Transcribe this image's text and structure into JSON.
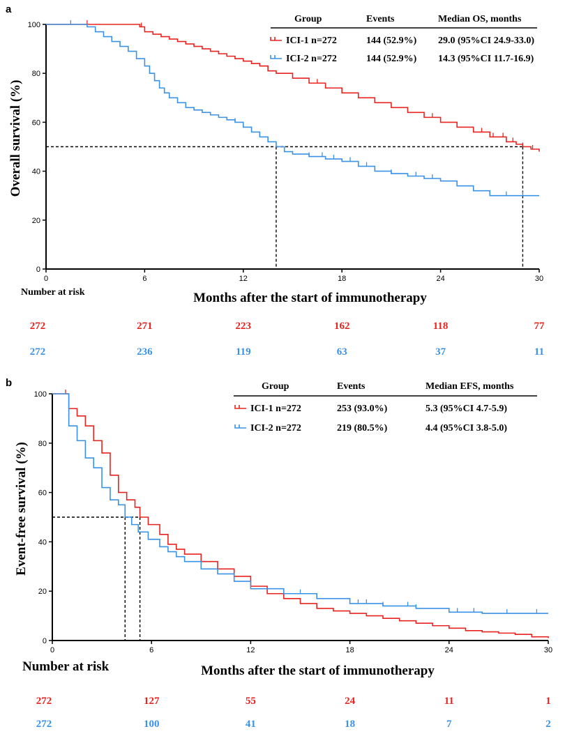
{
  "chart_data": [
    {
      "panel_label": "a",
      "type": "line",
      "xlabel": "Months after the start of immunotherapy",
      "ylabel": "Overall survival (%)",
      "xlim": [
        0,
        30
      ],
      "ylim": [
        0,
        100
      ],
      "xticks": [
        "0",
        "6",
        "12",
        "18",
        "24",
        "30"
      ],
      "yticks": [
        "0",
        "20",
        "40",
        "60",
        "80",
        "100"
      ],
      "grid": false,
      "legend_placement": "top-right",
      "legend_headers": [
        "Group",
        "Events",
        "Median OS, months"
      ],
      "series": [
        {
          "name": "ICI-1 n=272",
          "events": "144 (52.9%)",
          "median": "29.0 (95%CI 24.9-33.0)",
          "color": "#e8231f",
          "median_x": 29.0,
          "x": [
            0,
            5.7,
            6.0,
            6.5,
            7.0,
            7.5,
            8.0,
            8.5,
            9.0,
            9.5,
            10.0,
            10.5,
            11.0,
            11.5,
            12.0,
            12.5,
            13.0,
            13.5,
            14.0,
            15.0,
            16.0,
            17.0,
            18.0,
            19.0,
            20.0,
            21.0,
            22.0,
            23.0,
            24.0,
            25.0,
            26.0,
            27.0,
            28.0,
            28.6,
            29.0,
            29.5,
            30.0
          ],
          "y": [
            100,
            99,
            97,
            96,
            95,
            94,
            93,
            92,
            91,
            90,
            89,
            88,
            87,
            86,
            85,
            84,
            83,
            81,
            80,
            78,
            76,
            74,
            72,
            70,
            68,
            66,
            64,
            62,
            60,
            58,
            56,
            54,
            52,
            51,
            50,
            49,
            48
          ],
          "censor_x": [
            2.5,
            5.8,
            16.5,
            20.0,
            23.5,
            26.5,
            27.2,
            27.8,
            28.4,
            29.0,
            29.6
          ],
          "at_risk": [
            "272",
            "271",
            "223",
            "162",
            "118",
            "77"
          ]
        },
        {
          "name": "ICI-2 n=272",
          "events": "144 (52.9%)",
          "median": "14.3 (95%CI 11.7-16.9)",
          "color": "#3a92e6",
          "median_x": 14.0,
          "x": [
            0,
            2.5,
            3.0,
            3.5,
            4.0,
            4.5,
            5.0,
            5.5,
            6.0,
            6.3,
            6.6,
            6.9,
            7.2,
            7.5,
            8.0,
            8.5,
            9.0,
            9.5,
            10.0,
            10.5,
            11.0,
            11.5,
            12.0,
            12.5,
            13.0,
            13.5,
            14.0,
            14.5,
            15.0,
            16.0,
            17.0,
            18.0,
            19.0,
            20.0,
            21.0,
            22.0,
            23.0,
            24.0,
            25.0,
            26.0,
            27.0,
            30.0
          ],
          "y": [
            100,
            99,
            97,
            95,
            93,
            91,
            89,
            86,
            83,
            80,
            77,
            74,
            72,
            70,
            68,
            66,
            65,
            64,
            63,
            62,
            61,
            60,
            58,
            56,
            54,
            52,
            50,
            48,
            47,
            46,
            45,
            44,
            42,
            40,
            39,
            38,
            37,
            36,
            34,
            32,
            30,
            30
          ],
          "censor_x": [
            1.5,
            3.0,
            11.5,
            12.5,
            13.5,
            14.5,
            16.0,
            16.8,
            17.5,
            18.5,
            19.5,
            21.0,
            22.5,
            23.5,
            26.0,
            28.0,
            29.0
          ],
          "at_risk": [
            "272",
            "236",
            "119",
            "63",
            "37",
            "11"
          ]
        }
      ],
      "at_risk_label": "Number at risk"
    },
    {
      "panel_label": "b",
      "type": "line",
      "xlabel": "Months after the start of immunotherapy",
      "ylabel": "Event-free survival (%)",
      "xlim": [
        0,
        30
      ],
      "ylim": [
        0,
        100
      ],
      "xticks": [
        "0",
        "6",
        "12",
        "18",
        "24",
        "30"
      ],
      "yticks": [
        "0",
        "20",
        "40",
        "60",
        "80",
        "100"
      ],
      "grid": false,
      "legend_placement": "top-right",
      "legend_headers": [
        "Group",
        "Events",
        "Median EFS, months"
      ],
      "series": [
        {
          "name": "ICI-1 n=272",
          "events": "253 (93.0%)",
          "median": "5.3 (95%CI 4.7-5.9)",
          "color": "#e8231f",
          "median_x": 5.3,
          "x": [
            0,
            0.8,
            1.0,
            1.5,
            2.0,
            2.5,
            3.0,
            3.5,
            4.0,
            4.5,
            5.0,
            5.3,
            5.8,
            6.5,
            7.0,
            7.5,
            8.0,
            9.0,
            10.0,
            11.0,
            12.0,
            13.0,
            14.0,
            15.0,
            16.0,
            17.0,
            18.0,
            19.0,
            20.0,
            21.0,
            22.0,
            23.0,
            24.0,
            25.0,
            26.0,
            27.0,
            28.0,
            29.0,
            30.0
          ],
          "y": [
            100,
            100,
            94,
            91,
            87,
            81,
            76,
            67,
            60,
            57,
            54,
            50,
            47,
            43,
            39,
            37,
            35,
            32,
            29,
            26,
            22,
            19,
            17,
            15,
            13,
            12,
            11,
            10,
            9,
            8,
            7,
            6,
            5,
            4,
            3.5,
            3,
            2.5,
            1.5,
            1
          ],
          "censor_x": [
            0.8
          ],
          "at_risk": [
            "272",
            "127",
            "55",
            "24",
            "11",
            "1"
          ]
        },
        {
          "name": "ICI-2 n=272",
          "events": "219 (80.5%)",
          "median": "4.4 (95%CI 3.8-5.0)",
          "color": "#3a92e6",
          "median_x": 4.4,
          "x": [
            0,
            0.7,
            1.0,
            1.5,
            2.0,
            2.5,
            3.0,
            3.5,
            4.0,
            4.4,
            4.8,
            5.2,
            5.8,
            6.5,
            7.0,
            7.5,
            8.0,
            9.0,
            10.0,
            11.0,
            12.0,
            14.0,
            16.0,
            18.0,
            20.0,
            22.0,
            24.0,
            26.0,
            28.0,
            30.0
          ],
          "y": [
            100,
            100,
            87,
            81,
            74,
            70,
            62,
            57,
            55,
            50,
            47,
            44,
            41,
            38,
            36,
            34,
            32,
            29,
            27,
            24,
            21,
            19,
            17,
            15,
            14,
            13,
            11.5,
            11,
            11,
            11
          ],
          "censor_x": [
            15.0,
            18.5,
            19.0,
            20.0,
            21.5,
            22.0,
            24.5,
            25.5,
            27.5,
            29.3
          ],
          "at_risk": [
            "272",
            "100",
            "41",
            "18",
            "7",
            "2"
          ]
        }
      ],
      "at_risk_label": "Number at risk"
    }
  ]
}
